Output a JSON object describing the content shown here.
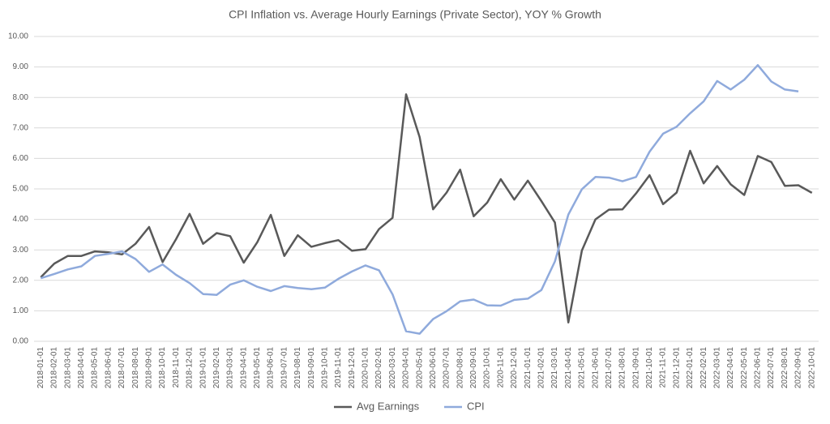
{
  "chart_data": {
    "type": "line",
    "title": "CPI Inflation vs. Average Hourly Earnings (Private Sector), YOY % Growth",
    "categories": [
      "2018-01-01",
      "2018-02-01",
      "2018-03-01",
      "2018-04-01",
      "2018-05-01",
      "2018-06-01",
      "2018-07-01",
      "2018-08-01",
      "2018-09-01",
      "2018-10-01",
      "2018-11-01",
      "2018-12-01",
      "2019-01-01",
      "2019-02-01",
      "2019-03-01",
      "2019-04-01",
      "2019-05-01",
      "2019-06-01",
      "2019-07-01",
      "2019-08-01",
      "2019-09-01",
      "2019-10-01",
      "2019-11-01",
      "2019-12-01",
      "2020-01-01",
      "2020-02-01",
      "2020-03-01",
      "2020-04-01",
      "2020-05-01",
      "2020-06-01",
      "2020-07-01",
      "2020-08-01",
      "2020-09-01",
      "2020-10-01",
      "2020-11-01",
      "2020-12-01",
      "2021-01-01",
      "2021-02-01",
      "2021-03-01",
      "2021-04-01",
      "2021-05-01",
      "2021-06-01",
      "2021-07-01",
      "2021-08-01",
      "2021-09-01",
      "2021-10-01",
      "2021-11-01",
      "2021-12-01",
      "2022-01-01",
      "2022-02-01",
      "2022-03-01",
      "2022-04-01",
      "2022-05-01",
      "2022-06-01",
      "2022-07-01",
      "2022-08-01",
      "2022-09-01",
      "2022-10-01"
    ],
    "series": [
      {
        "name": "Avg Earnings",
        "color": "#595959",
        "values": [
          2.1,
          2.55,
          2.8,
          2.8,
          2.95,
          2.92,
          2.85,
          3.2,
          3.75,
          2.6,
          3.35,
          4.18,
          3.2,
          3.55,
          3.45,
          2.58,
          3.25,
          4.15,
          2.8,
          3.48,
          3.1,
          3.22,
          3.32,
          2.97,
          3.02,
          3.68,
          4.05,
          8.1,
          6.7,
          4.33,
          4.88,
          5.63,
          4.1,
          4.55,
          5.32,
          4.65,
          5.27,
          4.6,
          3.9,
          0.62,
          2.98,
          4.0,
          4.32,
          4.33,
          4.85,
          5.45,
          4.5,
          4.88,
          6.25,
          5.18,
          5.75,
          5.15,
          4.8,
          6.08,
          5.88,
          5.1,
          5.12,
          4.87
        ]
      },
      {
        "name": "CPI",
        "color": "#8faadc",
        "values": [
          2.07,
          2.21,
          2.36,
          2.46,
          2.8,
          2.87,
          2.95,
          2.7,
          2.28,
          2.52,
          2.18,
          1.91,
          1.55,
          1.52,
          1.86,
          2.0,
          1.79,
          1.65,
          1.81,
          1.75,
          1.71,
          1.76,
          2.05,
          2.29,
          2.49,
          2.33,
          1.54,
          0.33,
          0.25,
          0.73,
          0.99,
          1.31,
          1.37,
          1.18,
          1.17,
          1.36,
          1.4,
          1.68,
          2.62,
          4.16,
          4.99,
          5.39,
          5.37,
          5.25,
          5.39,
          6.22,
          6.81,
          7.04,
          7.48,
          7.87,
          8.54,
          8.26,
          8.58,
          9.06,
          8.52,
          8.26,
          8.2,
          null
        ]
      }
    ],
    "ylim": [
      0,
      10
    ],
    "yticks": [
      {
        "value": 0,
        "label": "0.00"
      },
      {
        "value": 1,
        "label": "1.00"
      },
      {
        "value": 2,
        "label": "2.00"
      },
      {
        "value": 3,
        "label": "3.00"
      },
      {
        "value": 4,
        "label": "4.00"
      },
      {
        "value": 5,
        "label": "5.00"
      },
      {
        "value": 6,
        "label": "6.00"
      },
      {
        "value": 7,
        "label": "7.00"
      },
      {
        "value": 8,
        "label": "8.00"
      },
      {
        "value": 9,
        "label": "9.00"
      },
      {
        "value": 10,
        "label": "10.00"
      }
    ],
    "grid": true,
    "legend": "bottom"
  }
}
